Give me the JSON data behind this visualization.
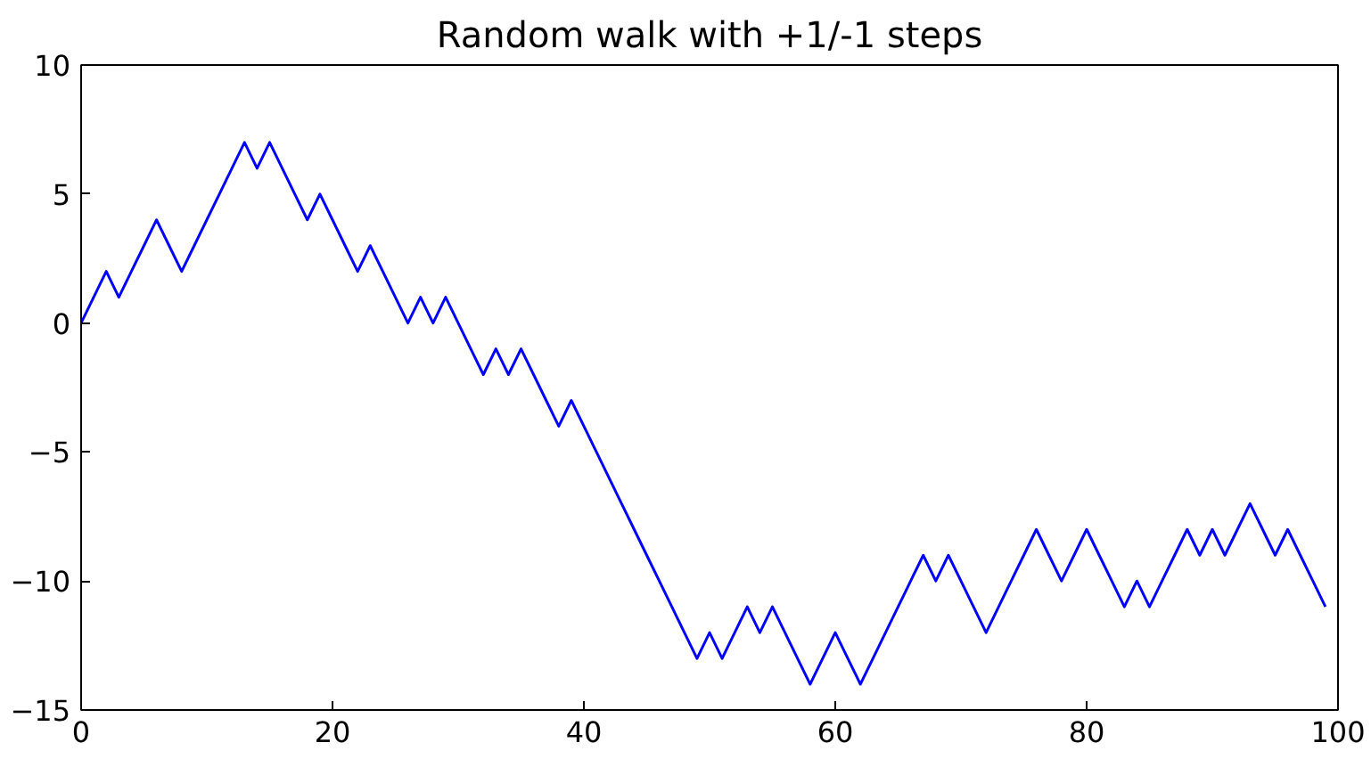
{
  "chart_data": {
    "type": "line",
    "title": "Random walk with +1/-1 steps",
    "x": [
      0,
      1,
      2,
      3,
      4,
      5,
      6,
      7,
      8,
      9,
      10,
      11,
      12,
      13,
      14,
      15,
      16,
      17,
      18,
      19,
      20,
      21,
      22,
      23,
      24,
      25,
      26,
      27,
      28,
      29,
      30,
      31,
      32,
      33,
      34,
      35,
      36,
      37,
      38,
      39,
      40,
      41,
      42,
      43,
      44,
      45,
      46,
      47,
      48,
      49,
      50,
      51,
      52,
      53,
      54,
      55,
      56,
      57,
      58,
      59,
      60,
      61,
      62,
      63,
      64,
      65,
      66,
      67,
      68,
      69,
      70,
      71,
      72,
      73,
      74,
      75,
      76,
      77,
      78,
      79,
      80,
      81,
      82,
      83,
      84,
      85,
      86,
      87,
      88,
      89,
      90,
      91,
      92,
      93,
      94,
      95,
      96,
      97,
      98,
      99
    ],
    "series": [
      {
        "color": "#0000ff",
        "values": [
          0,
          1,
          2,
          1,
          2,
          3,
          4,
          3,
          2,
          3,
          4,
          5,
          6,
          7,
          6,
          7,
          6,
          5,
          4,
          5,
          4,
          3,
          2,
          3,
          2,
          1,
          0,
          1,
          0,
          1,
          0,
          -1,
          -2,
          -1,
          -2,
          -1,
          -2,
          -3,
          -4,
          -3,
          -4,
          -5,
          -6,
          -7,
          -8,
          -9,
          -10,
          -11,
          -12,
          -13,
          -12,
          -13,
          -12,
          -11,
          -12,
          -11,
          -12,
          -13,
          -14,
          -13,
          -12,
          -13,
          -14,
          -13,
          -12,
          -11,
          -10,
          -9,
          -10,
          -9,
          -10,
          -11,
          -12,
          -11,
          -10,
          -9,
          -8,
          -9,
          -10,
          -9,
          -8,
          -9,
          -10,
          -11,
          -10,
          -11,
          -10,
          -9,
          -8,
          -9,
          -8,
          -9,
          -8,
          -7,
          -8,
          -9,
          -8,
          -9,
          -10,
          -11
        ]
      }
    ],
    "xlim": [
      0,
      100
    ],
    "ylim": [
      -15,
      10
    ],
    "xticks": [
      0,
      20,
      40,
      60,
      80,
      100
    ],
    "yticks": [
      -15,
      -10,
      -5,
      0,
      5,
      10
    ],
    "grid": false,
    "marker": "none",
    "line_style": "solid"
  }
}
